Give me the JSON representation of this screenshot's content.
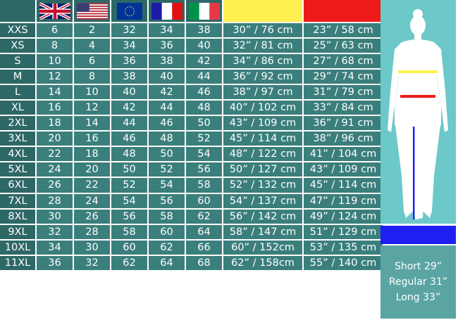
{
  "colors": {
    "header_yellow": "#fff04f",
    "header_red": "#ee1a1a",
    "inseam_blue": "#1f1ff2",
    "cell": "#3b7f7c",
    "size_cell": "#2e6866"
  },
  "header": {
    "flags": [
      "uk-flag",
      "us-flag",
      "eu-flag",
      "france-flag",
      "italy-flag"
    ],
    "measures": [
      "hip-yellow",
      "waist-red"
    ]
  },
  "rows": [
    [
      "XXS",
      "6",
      "2",
      "32",
      "34",
      "38",
      "30” / 76 cm",
      "23” / 58 cm"
    ],
    [
      "XS",
      "8",
      "4",
      "34",
      "36",
      "40",
      "32” / 81 cm",
      "25” / 63 cm"
    ],
    [
      "S",
      "10",
      "6",
      "36",
      "38",
      "42",
      "34” / 86 cm",
      "27” / 68 cm"
    ],
    [
      "M",
      "12",
      "8",
      "38",
      "40",
      "44",
      "36” / 92 cm",
      "29” / 74 cm"
    ],
    [
      "L",
      "14",
      "10",
      "40",
      "42",
      "46",
      "38” / 97 cm",
      "31” / 79 cm"
    ],
    [
      "XL",
      "16",
      "12",
      "42",
      "44",
      "48",
      "40” / 102 cm",
      "33” / 84 cm"
    ],
    [
      "2XL",
      "18",
      "14",
      "44",
      "46",
      "50",
      "43” / 109 cm",
      "36” / 91 cm"
    ],
    [
      "3XL",
      "20",
      "16",
      "46",
      "48",
      "52",
      "45” / 114 cm",
      "38” / 96 cm"
    ],
    [
      "4XL",
      "22",
      "18",
      "48",
      "50",
      "54",
      "48” / 122 cm",
      "41” / 104 cm"
    ],
    [
      "5XL",
      "24",
      "20",
      "50",
      "52",
      "56",
      "50” / 127 cm",
      "43” / 109 cm"
    ],
    [
      "6XL",
      "26",
      "22",
      "52",
      "54",
      "58",
      "52” / 132 cm",
      "45” / 114 cm"
    ],
    [
      "7XL",
      "28",
      "24",
      "54",
      "56",
      "60",
      "54” / 137 cm",
      "47” / 119 cm"
    ],
    [
      "8XL",
      "30",
      "26",
      "56",
      "58",
      "62",
      "56” / 142 cm",
      "49” / 124 cm"
    ],
    [
      "9XL",
      "32",
      "28",
      "58",
      "60",
      "64",
      "58” / 147 cm",
      "51” / 129 cm"
    ],
    [
      "10XL",
      "34",
      "30",
      "60",
      "62",
      "66",
      "60” / 152cm",
      "53” / 135 cm"
    ],
    [
      "11XL",
      "36",
      "32",
      "62",
      "64",
      "68",
      "62” / 158cm",
      "55” / 140 cm"
    ]
  ],
  "inseam": {
    "short": "Short 29”",
    "regular": "Regular 31”",
    "long": "Long 33”"
  }
}
